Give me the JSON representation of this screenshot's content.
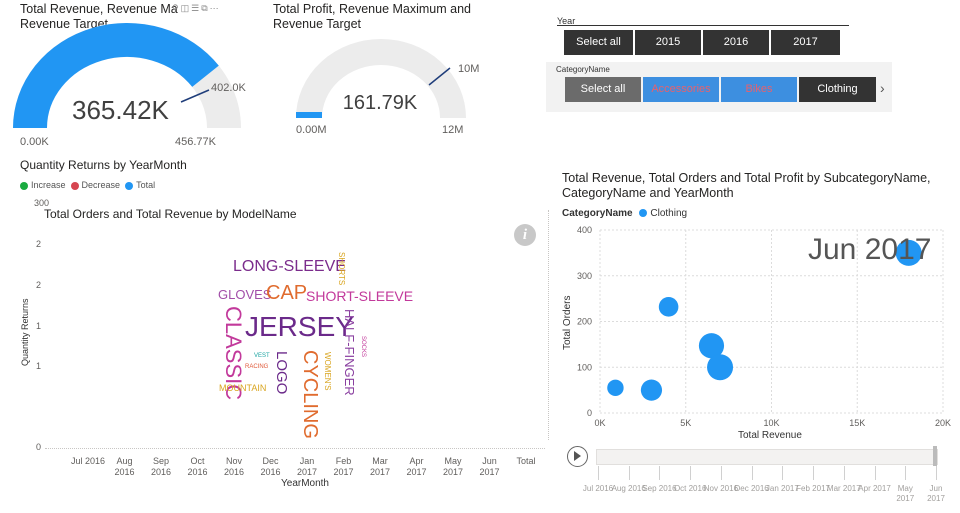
{
  "gauge1": {
    "title": "Total Revenue, Revenue Maximum and Revenue Target",
    "title_line1": "Total Revenue, Revenue Ma",
    "title_line2": "Revenue Target",
    "value_label": "365.42K",
    "value": 365420,
    "min_label": "0.00K",
    "max_label": "456.77K",
    "max": 456770,
    "target_label": "402.0K",
    "target": 402000,
    "color": "#2196f3"
  },
  "gauge2": {
    "title_line1": "Total Profit, Revenue Maximum and",
    "title_line2": "Revenue Target",
    "value_label": "161.79K",
    "value": 161790,
    "min_label": "0.00M",
    "max_label": "12M",
    "max": 12000000,
    "target_label": "10M",
    "target": 10000000
  },
  "year_slicer": {
    "label": "Year",
    "options": [
      "Select all",
      "2015",
      "2016",
      "2017"
    ]
  },
  "category_slicer": {
    "label": "CategoryName",
    "options": [
      "Select all",
      "Accessories",
      "Bikes",
      "Clothing"
    ],
    "next_icon": "chevron-right-icon"
  },
  "returns_chart": {
    "title": "Quantity Returns by YearMonth",
    "legend": [
      {
        "label": "Increase",
        "color": "#1aab40"
      },
      {
        "label": "Decrease",
        "color": "#d64550"
      },
      {
        "label": "Total",
        "color": "#2196f3"
      }
    ],
    "ylabel": "Quantity Returns",
    "xlabel": "YearMonth",
    "y_ticks": [
      "300",
      "2",
      "2",
      "1",
      "1",
      "0"
    ],
    "x_ticks": [
      {
        "l1": "Jul 2016",
        "l2": ""
      },
      {
        "l1": "Aug",
        "l2": "2016"
      },
      {
        "l1": "Sep",
        "l2": "2016"
      },
      {
        "l1": "Oct",
        "l2": "2016"
      },
      {
        "l1": "Nov",
        "l2": "2016"
      },
      {
        "l1": "Dec",
        "l2": "2016"
      },
      {
        "l1": "Jan",
        "l2": "2017"
      },
      {
        "l1": "Feb",
        "l2": "2017"
      },
      {
        "l1": "Mar",
        "l2": "2017"
      },
      {
        "l1": "Apr",
        "l2": "2017"
      },
      {
        "l1": "May",
        "l2": "2017"
      },
      {
        "l1": "Jun",
        "l2": "2017"
      },
      {
        "l1": "Total",
        "l2": ""
      }
    ]
  },
  "wordcloud": {
    "title": "Total Orders and Total Revenue by ModelName",
    "info_icon": "info-icon",
    "words": {
      "long_sleeve": "LONG-SLEEVE",
      "shorts": "SHORTS",
      "gloves": "GLOVES",
      "cap": "CAP",
      "short_sleeve": "SHORT-SLEEVE",
      "classic": "CLASSIC",
      "jersey": "JERSEY",
      "half_finger": "HALF-FINGER",
      "socks": "SOCKS",
      "vest": "VEST",
      "racing": "RACING",
      "logo": "LOGO",
      "womens": "WOMEN'S",
      "cycling": "CYCLING",
      "mountain": "MOUNTAIN"
    }
  },
  "scatter": {
    "title_line1": "Total Revenue, Total Orders and Total Profit by SubcategoryName,",
    "title_line2": "CategoryName and YearMonth",
    "legend_label": "CategoryName",
    "legend_item": "Clothing",
    "play_axis_label": "Jun 2017",
    "play_icon": "play-icon",
    "timeline": [
      "Jul 2016",
      "Aug 2016",
      "Sep 2016",
      "Oct 2016",
      "Nov 2016",
      "Dec 2016",
      "Jan 2017",
      "Feb 2017",
      "Mar 2017",
      "Apr 2017",
      "May 2017",
      "Jun 2017"
    ],
    "timeline_labels": [
      "Jul 2016",
      "Aug 2016",
      "Sep 2016",
      "Oct 2016",
      "Nov 2016",
      "Dec 2016",
      "Jan 2017",
      "Feb 2017",
      "Mar 2017",
      "Apr 2017",
      "May",
      "Jun"
    ],
    "timeline_labels2": [
      "",
      "",
      "",
      "",
      "",
      "",
      "",
      "",
      "",
      "",
      "2017",
      "2017"
    ]
  },
  "chart_data": {
    "type": "scatter",
    "title": "Total Revenue, Total Orders and Total Profit by SubcategoryName, CategoryName and YearMonth",
    "xlabel": "Total Revenue",
    "ylabel": "Total Orders",
    "xlim": [
      0,
      20000
    ],
    "ylim": [
      0,
      400
    ],
    "x_ticks": [
      "0K",
      "5K",
      "10K",
      "15K",
      "20K"
    ],
    "y_ticks": [
      "0",
      "100",
      "200",
      "300",
      "400"
    ],
    "x_tick_values": [
      0,
      5000,
      10000,
      15000,
      20000
    ],
    "y_tick_values": [
      0,
      100,
      200,
      300,
      400
    ],
    "series": [
      {
        "name": "Clothing",
        "color": "#2196f3",
        "points": [
          {
            "x": 900,
            "y": 55,
            "size": 0.4
          },
          {
            "x": 3000,
            "y": 50,
            "size": 0.7
          },
          {
            "x": 4000,
            "y": 232,
            "size": 0.6
          },
          {
            "x": 6500,
            "y": 147,
            "size": 0.95
          },
          {
            "x": 7000,
            "y": 100,
            "size": 1.0
          },
          {
            "x": 18000,
            "y": 350,
            "size": 1.0
          }
        ]
      }
    ]
  }
}
